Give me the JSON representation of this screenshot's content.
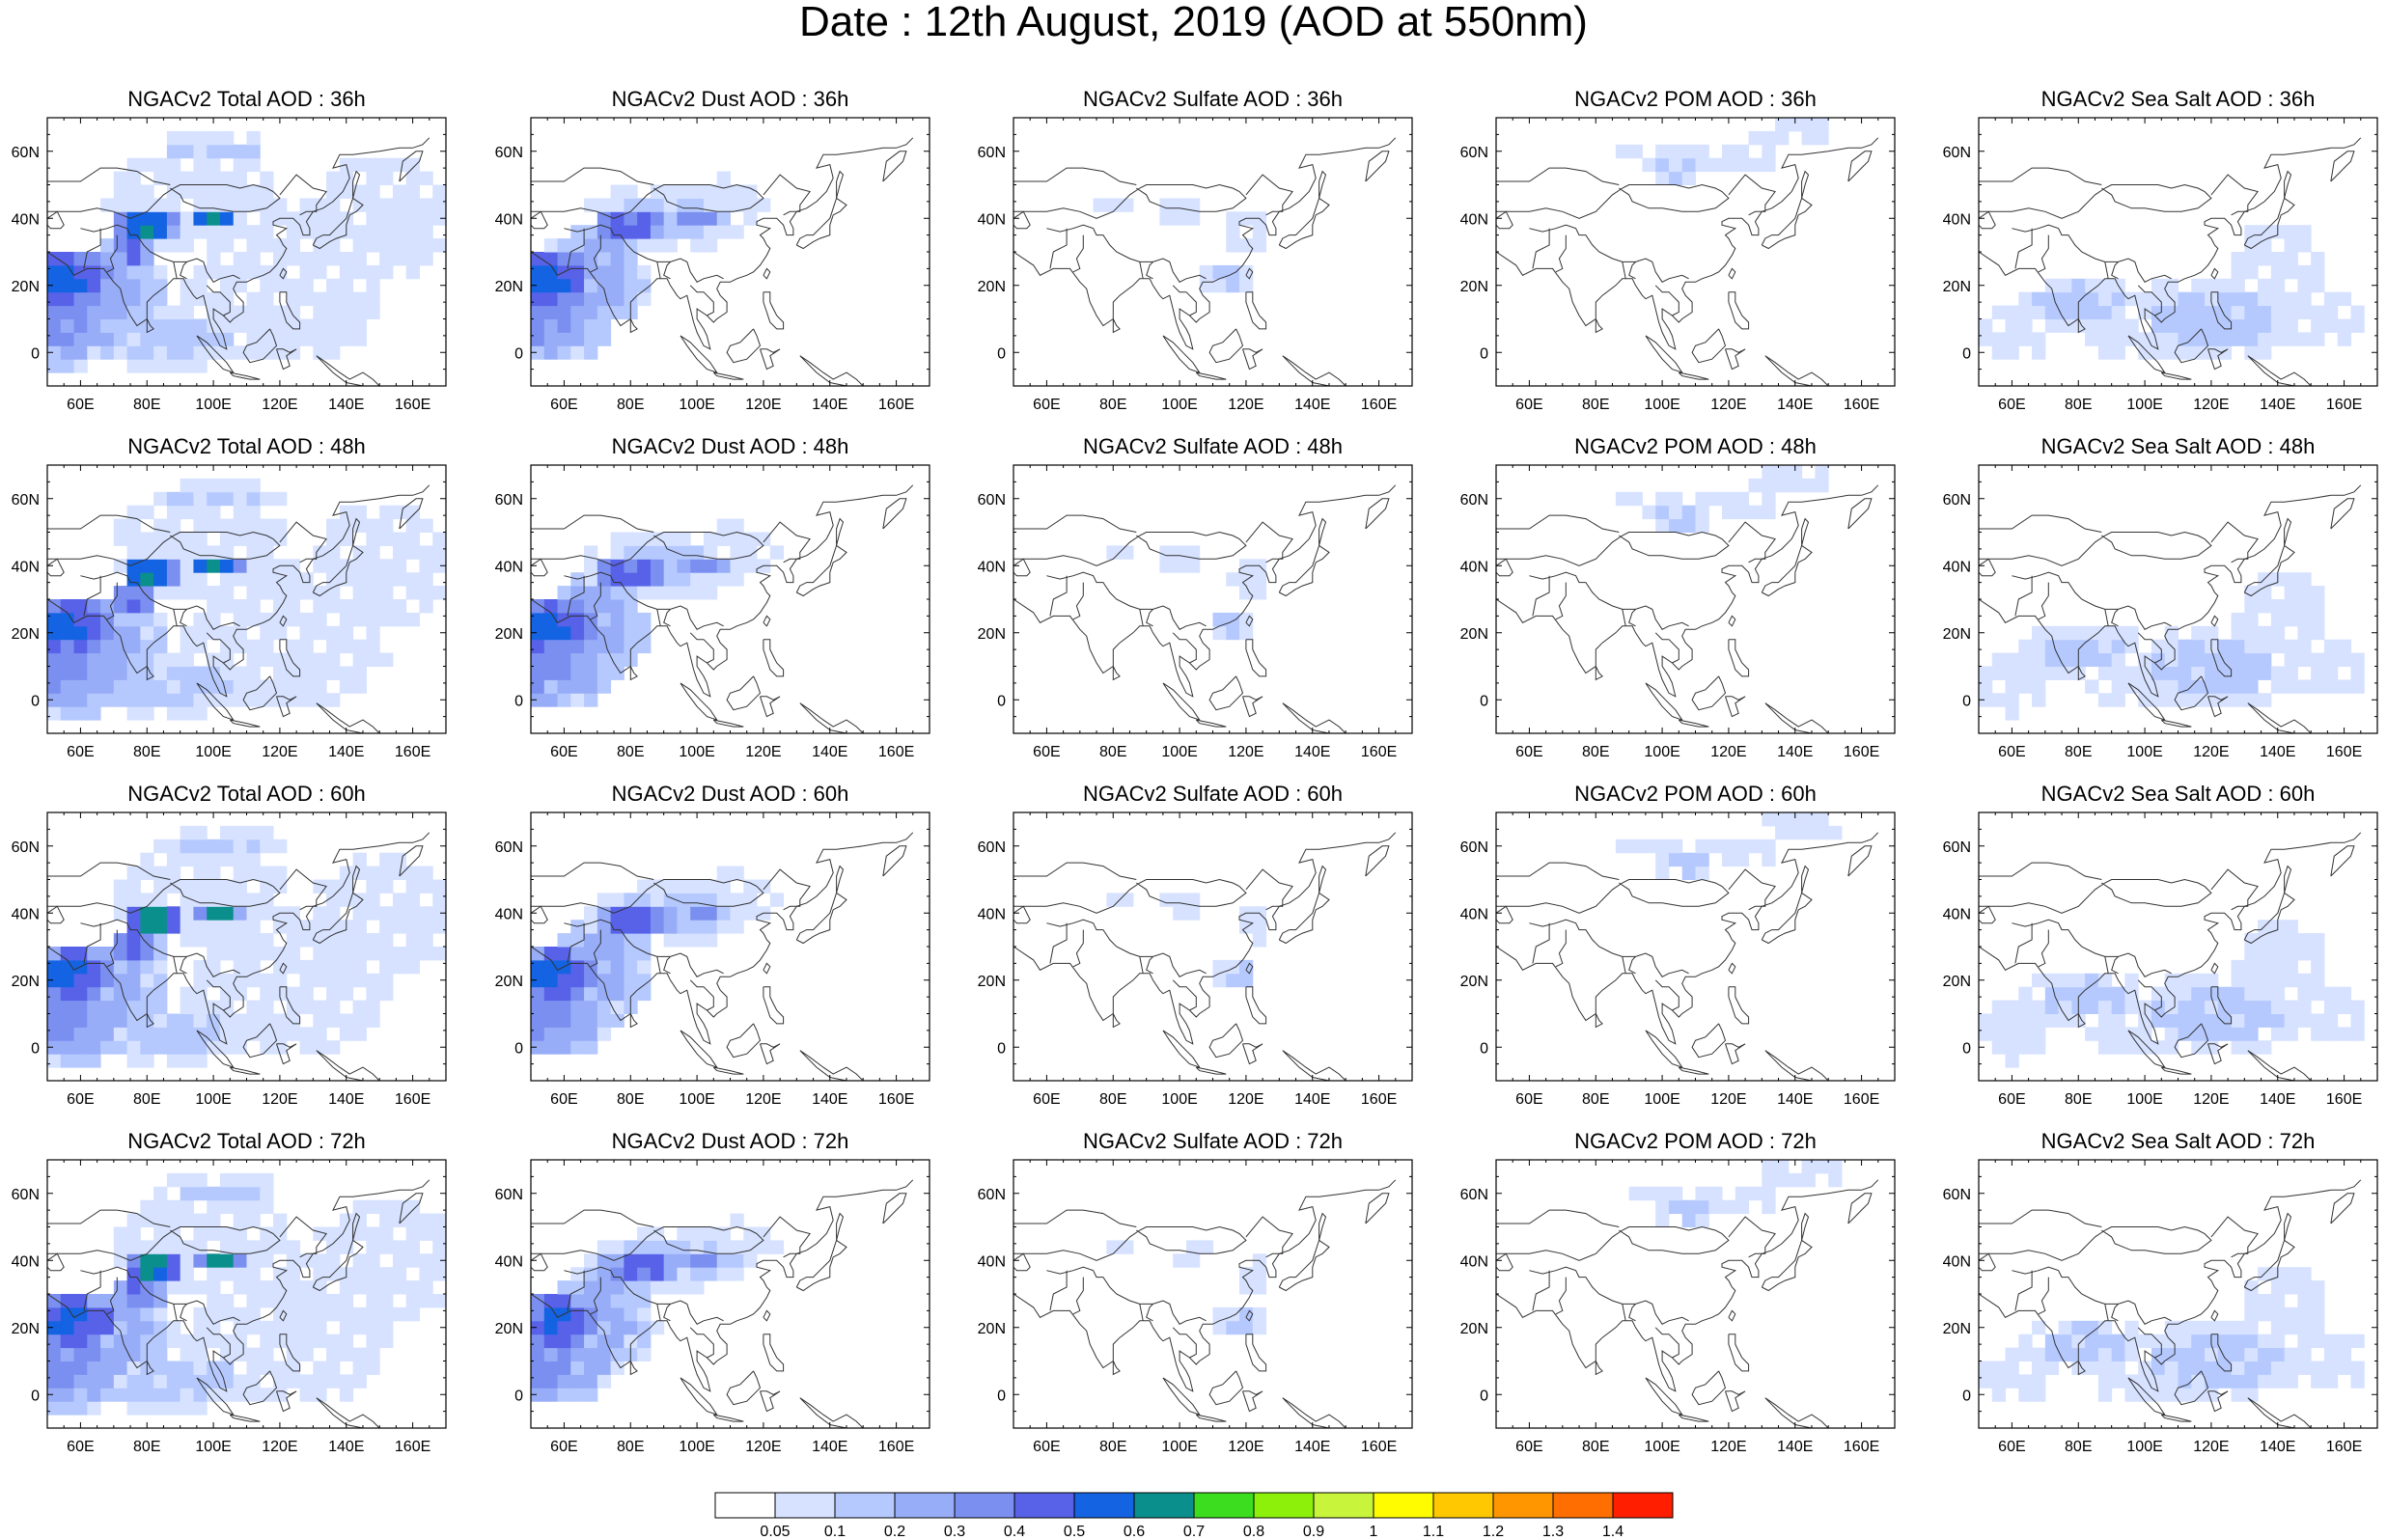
{
  "title": "Date : 12th August, 2019 (AOD at 550nm)",
  "map": {
    "lon_range": [
      50,
      170
    ],
    "lat_range": [
      -10,
      70
    ],
    "lon_ticks": [
      "60E",
      "80E",
      "100E",
      "120E",
      "140E",
      "160E"
    ],
    "lon_tick_values": [
      60,
      80,
      100,
      120,
      140,
      160
    ],
    "lat_ticks": [
      "60N",
      "40N",
      "20N",
      "0"
    ],
    "lat_tick_values": [
      60,
      40,
      20,
      0
    ]
  },
  "rows": [
    {
      "hour": "36h",
      "panels": [
        {
          "id": "total",
          "title": "NGACv2 Total AOD : 36h"
        },
        {
          "id": "dust",
          "title": "NGACv2 Dust AOD : 36h"
        },
        {
          "id": "sulfate",
          "title": "NGACv2 Sulfate AOD : 36h"
        },
        {
          "id": "pom",
          "title": "NGACv2 POM AOD : 36h"
        },
        {
          "id": "seasalt",
          "title": "NGACv2 Sea Salt AOD : 36h"
        }
      ]
    },
    {
      "hour": "48h",
      "panels": [
        {
          "id": "total",
          "title": "NGACv2 Total AOD : 48h"
        },
        {
          "id": "dust",
          "title": "NGACv2 Dust AOD : 48h"
        },
        {
          "id": "sulfate",
          "title": "NGACv2 Sulfate AOD : 48h"
        },
        {
          "id": "pom",
          "title": "NGACv2 POM AOD : 48h"
        },
        {
          "id": "seasalt",
          "title": "NGACv2 Sea Salt AOD : 48h"
        }
      ]
    },
    {
      "hour": "60h",
      "panels": [
        {
          "id": "total",
          "title": "NGACv2 Total AOD : 60h"
        },
        {
          "id": "dust",
          "title": "NGACv2 Dust AOD : 60h"
        },
        {
          "id": "sulfate",
          "title": "NGACv2 Sulfate AOD : 60h"
        },
        {
          "id": "pom",
          "title": "NGACv2 POM AOD : 60h"
        },
        {
          "id": "seasalt",
          "title": "NGACv2 Sea Salt AOD : 60h"
        }
      ]
    },
    {
      "hour": "72h",
      "panels": [
        {
          "id": "total",
          "title": "NGACv2 Total AOD : 72h"
        },
        {
          "id": "dust",
          "title": "NGACv2 Dust AOD : 72h"
        },
        {
          "id": "sulfate",
          "title": "NGACv2 Sulfate AOD : 72h"
        },
        {
          "id": "pom",
          "title": "NGACv2 POM AOD : 72h"
        },
        {
          "id": "seasalt",
          "title": "NGACv2 Sea Salt  AOD : 72h"
        }
      ]
    }
  ],
  "colorbar": {
    "labels": [
      "0.05",
      "0.1",
      "0.2",
      "0.3",
      "0.4",
      "0.5",
      "0.6",
      "0.7",
      "0.8",
      "0.9",
      "1",
      "1.1",
      "1.2",
      "1.3",
      "1.4"
    ],
    "colors": [
      "#ffffff",
      "#d6e2ff",
      "#b5c9ff",
      "#98adf7",
      "#7b8ff0",
      "#5762e8",
      "#1463e3",
      "#0a8f8c",
      "#3cdc1e",
      "#8cf00a",
      "#c8f53c",
      "#fffc00",
      "#ffc800",
      "#ff9600",
      "#ff6e00",
      "#ff1e00"
    ]
  }
}
